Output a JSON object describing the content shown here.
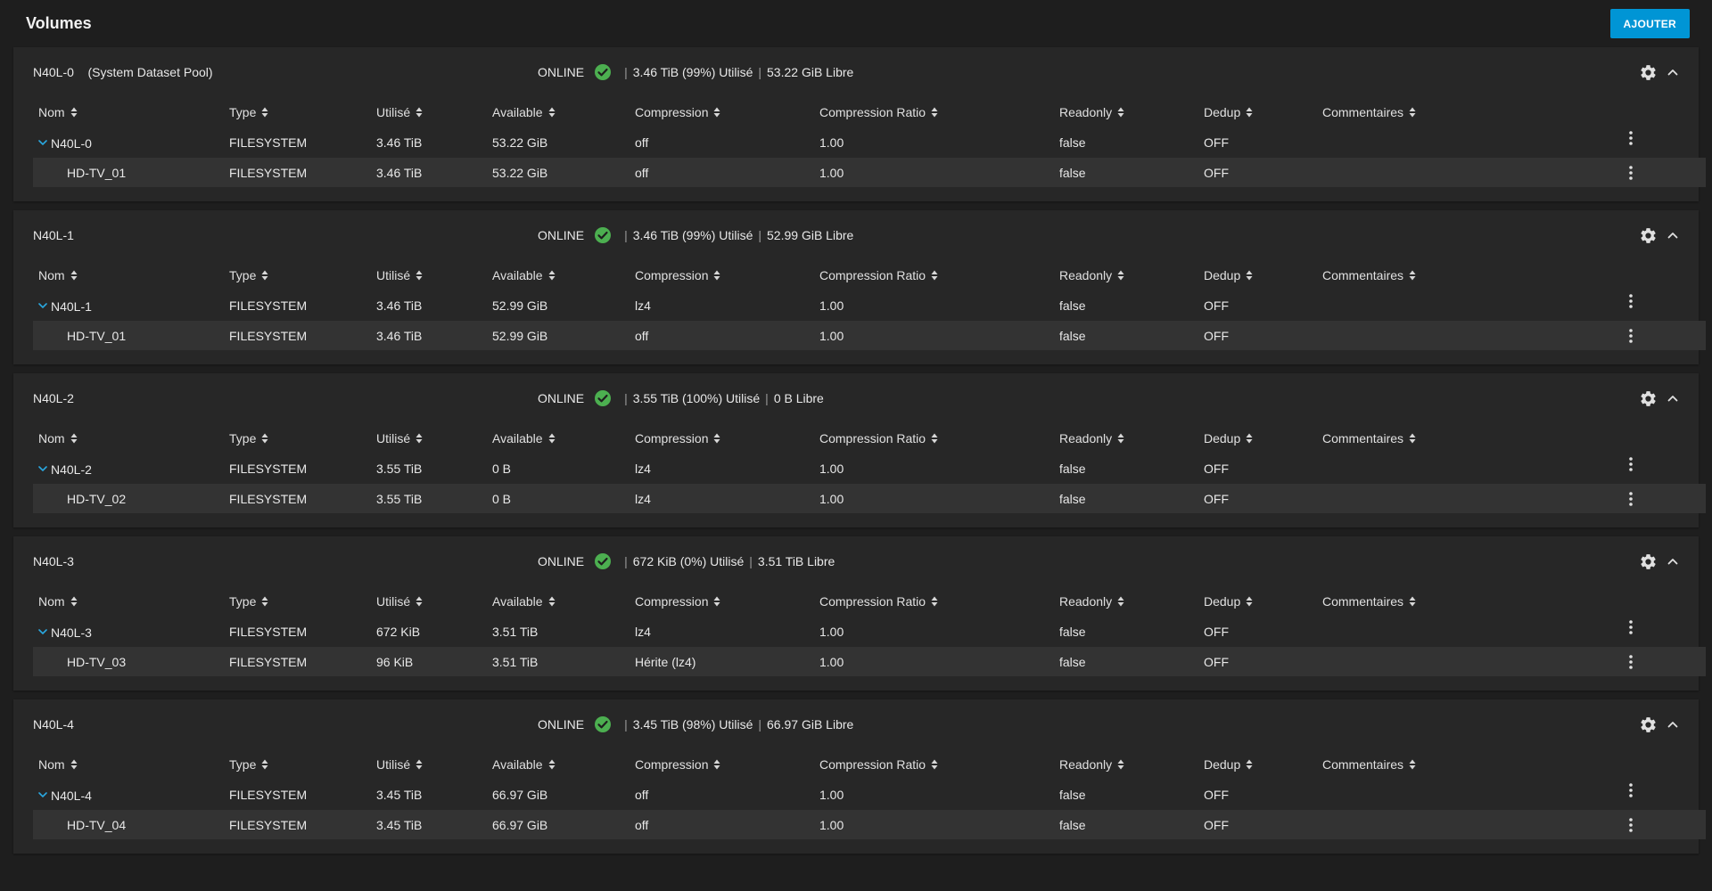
{
  "page": {
    "title": "Volumes",
    "add_label": "AJOUTER"
  },
  "colors": {
    "accent": "#0095d5",
    "online": "#4caf50"
  },
  "columns": [
    {
      "label": "Nom"
    },
    {
      "label": "Type"
    },
    {
      "label": "Utilisé"
    },
    {
      "label": "Available"
    },
    {
      "label": "Compression"
    },
    {
      "label": "Compression Ratio"
    },
    {
      "label": "Readonly"
    },
    {
      "label": "Dedup"
    },
    {
      "label": "Commentaires"
    }
  ],
  "pools": [
    {
      "name": "N40L-0",
      "note": "(System Dataset Pool)",
      "status": "ONLINE",
      "used_summary": "3.46 TiB (99%) Utilisé",
      "free_summary": "53.22 GiB Libre",
      "rows": [
        {
          "name": "N40L-0",
          "type": "FILESYSTEM",
          "used": "3.46 TiB",
          "available": "53.22 GiB",
          "compression": "off",
          "ratio": "1.00",
          "readonly": "false",
          "dedup": "OFF",
          "comments": ""
        },
        {
          "name": "HD-TV_01",
          "type": "FILESYSTEM",
          "used": "3.46 TiB",
          "available": "53.22 GiB",
          "compression": "off",
          "ratio": "1.00",
          "readonly": "false",
          "dedup": "OFF",
          "comments": ""
        }
      ]
    },
    {
      "name": "N40L-1",
      "note": "",
      "status": "ONLINE",
      "used_summary": "3.46 TiB (99%) Utilisé",
      "free_summary": "52.99 GiB Libre",
      "rows": [
        {
          "name": "N40L-1",
          "type": "FILESYSTEM",
          "used": "3.46 TiB",
          "available": "52.99 GiB",
          "compression": "lz4",
          "ratio": "1.00",
          "readonly": "false",
          "dedup": "OFF",
          "comments": ""
        },
        {
          "name": "HD-TV_01",
          "type": "FILESYSTEM",
          "used": "3.46 TiB",
          "available": "52.99 GiB",
          "compression": "off",
          "ratio": "1.00",
          "readonly": "false",
          "dedup": "OFF",
          "comments": ""
        }
      ]
    },
    {
      "name": "N40L-2",
      "note": "",
      "status": "ONLINE",
      "used_summary": "3.55 TiB (100%) Utilisé",
      "free_summary": "0 B Libre",
      "rows": [
        {
          "name": "N40L-2",
          "type": "FILESYSTEM",
          "used": "3.55 TiB",
          "available": "0 B",
          "compression": "lz4",
          "ratio": "1.00",
          "readonly": "false",
          "dedup": "OFF",
          "comments": ""
        },
        {
          "name": "HD-TV_02",
          "type": "FILESYSTEM",
          "used": "3.55 TiB",
          "available": "0 B",
          "compression": "lz4",
          "ratio": "1.00",
          "readonly": "false",
          "dedup": "OFF",
          "comments": ""
        }
      ]
    },
    {
      "name": "N40L-3",
      "note": "",
      "status": "ONLINE",
      "used_summary": "672 KiB (0%) Utilisé",
      "free_summary": "3.51 TiB Libre",
      "rows": [
        {
          "name": "N40L-3",
          "type": "FILESYSTEM",
          "used": "672 KiB",
          "available": "3.51 TiB",
          "compression": "lz4",
          "ratio": "1.00",
          "readonly": "false",
          "dedup": "OFF",
          "comments": ""
        },
        {
          "name": "HD-TV_03",
          "type": "FILESYSTEM",
          "used": "96 KiB",
          "available": "3.51 TiB",
          "compression": "Hérite (lz4)",
          "ratio": "1.00",
          "readonly": "false",
          "dedup": "OFF",
          "comments": ""
        }
      ]
    },
    {
      "name": "N40L-4",
      "note": "",
      "status": "ONLINE",
      "used_summary": "3.45 TiB (98%) Utilisé",
      "free_summary": "66.97 GiB Libre",
      "rows": [
        {
          "name": "N40L-4",
          "type": "FILESYSTEM",
          "used": "3.45 TiB",
          "available": "66.97 GiB",
          "compression": "off",
          "ratio": "1.00",
          "readonly": "false",
          "dedup": "OFF",
          "comments": ""
        },
        {
          "name": "HD-TV_04",
          "type": "FILESYSTEM",
          "used": "3.45 TiB",
          "available": "66.97 GiB",
          "compression": "off",
          "ratio": "1.00",
          "readonly": "false",
          "dedup": "OFF",
          "comments": ""
        }
      ]
    }
  ]
}
